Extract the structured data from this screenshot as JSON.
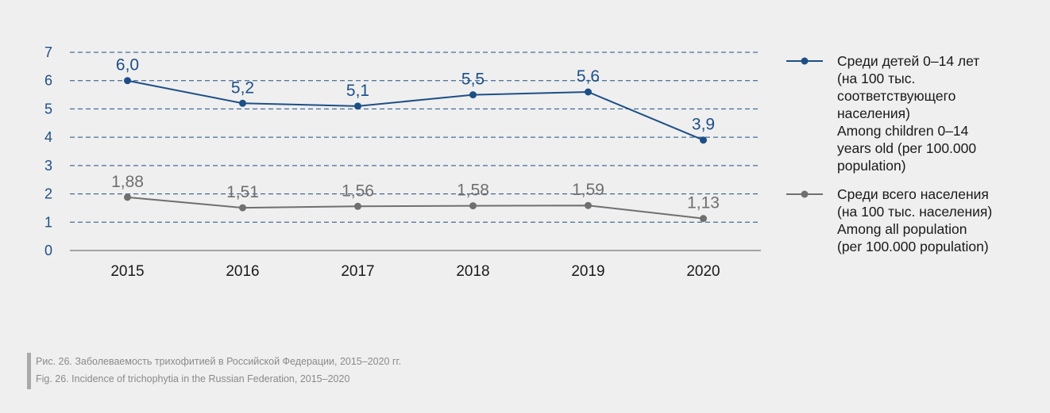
{
  "chart_data": {
    "type": "line",
    "x": [
      "2015",
      "2016",
      "2017",
      "2018",
      "2019",
      "2020"
    ],
    "ylim": [
      0,
      7
    ],
    "yticks": [
      "0",
      "1",
      "2",
      "3",
      "4",
      "5",
      "6",
      "7"
    ],
    "grid": "horizontal dashed",
    "legend_position": "right",
    "series": [
      {
        "name": "Среди детей 0–14 лет (на 100 тыс. соответствующего населения) Among children 0–14 years old (per 100.000 population)",
        "values": [
          6.0,
          5.2,
          5.1,
          5.5,
          5.6,
          3.9
        ],
        "labels": [
          "6,0",
          "5,2",
          "5,1",
          "5,5",
          "5,6",
          "3,9"
        ],
        "color": "#1d4f86"
      },
      {
        "name": "Среди всего населения (на 100 тыс. населения) Among all population (per 100.000 population)",
        "values": [
          1.88,
          1.51,
          1.56,
          1.58,
          1.59,
          1.13
        ],
        "labels": [
          "1,88",
          "1,51",
          "1,56",
          "1,58",
          "1,59",
          "1,13"
        ],
        "color": "#6f6f6f"
      }
    ]
  },
  "legend": [
    {
      "lines": [
        "Среди детей 0–14 лет",
        "(на 100 тыс.",
        "соответствующего",
        "населения)",
        "Among children 0–14",
        "years old (per 100.000",
        "population)"
      ],
      "color": "#1d4f86"
    },
    {
      "lines": [
        "Среди всего населения",
        "(на 100 тыс. населения)",
        "Among all population",
        "(per 100.000 population)"
      ],
      "color": "#6f6f6f"
    }
  ],
  "caption": {
    "ru": "Рис. 26. Заболеваемость трихофитией в Российской Федерации, 2015–2020 гг.",
    "en": "Fig. 26. Incidence of trichophytia in the Russian Federation, 2015–2020"
  }
}
